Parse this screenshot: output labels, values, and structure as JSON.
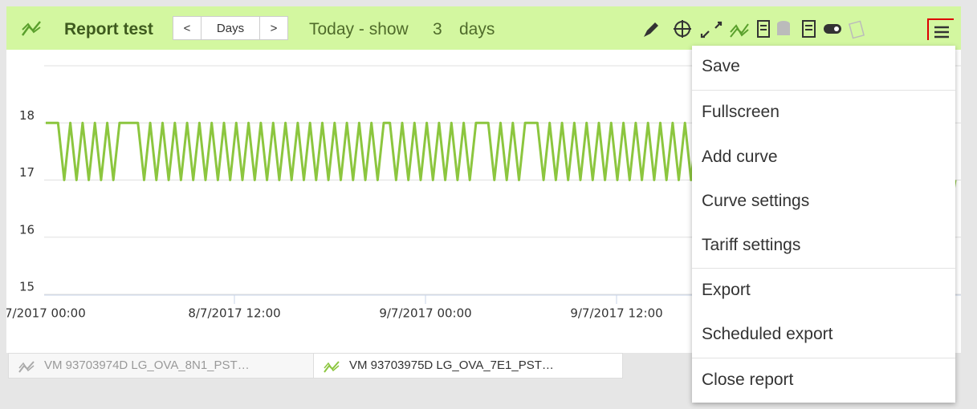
{
  "header": {
    "title": "Report test",
    "prev": "<",
    "period": "Days",
    "next": ">",
    "range_text": "Today - show",
    "range_count": "3",
    "range_unit": "days"
  },
  "chart_data": {
    "type": "line",
    "series": [
      {
        "name": "VM 93703975D LG_OVA_7E1_PST…",
        "color": "#8cc63f",
        "values": [
          18,
          18,
          18,
          17,
          18,
          17,
          18,
          17,
          18,
          17,
          18,
          17,
          18,
          18,
          18,
          18,
          17,
          18,
          17,
          18,
          17,
          18,
          17,
          18,
          17,
          18,
          17,
          18,
          17,
          18,
          17,
          18,
          17,
          18,
          17,
          18,
          17,
          18,
          17,
          18,
          17,
          18,
          17,
          18,
          17,
          18,
          17,
          18,
          17,
          18,
          17,
          18,
          17,
          18,
          17,
          18,
          18,
          17,
          18,
          17,
          18,
          17,
          18,
          17,
          18,
          17,
          18,
          17,
          18,
          17,
          18,
          18,
          18,
          17,
          18,
          17,
          18,
          17,
          18,
          18,
          18,
          17,
          18,
          17,
          18,
          17,
          18,
          17,
          18,
          17,
          18,
          17,
          18,
          17,
          18,
          17,
          18,
          17,
          18,
          17,
          18,
          17,
          18,
          17,
          18,
          17,
          18,
          17,
          18,
          17,
          18,
          17,
          18,
          17,
          18,
          17,
          18,
          17,
          18,
          17,
          18,
          17,
          18,
          17,
          18,
          17,
          18,
          17,
          18,
          17,
          18,
          17,
          18,
          17,
          18,
          17,
          18,
          17,
          18,
          17,
          18,
          17,
          18,
          17,
          18,
          17,
          18,
          16.3,
          17
        ]
      }
    ],
    "inactive_series": [
      "VM 93703974D LG_OVA_8N1_PST…"
    ],
    "xtick_labels": [
      "7/2017 00:00",
      "8/7/2017 12:00",
      "9/7/2017 00:00",
      "9/7/2017 12:00"
    ],
    "ylim": [
      15,
      19
    ],
    "yticks": [
      15,
      16,
      17,
      18
    ],
    "grid": true
  },
  "menu": [
    [
      "Save"
    ],
    [
      "Fullscreen",
      "Add curve",
      "Curve settings",
      "Tariff settings"
    ],
    [
      "Export",
      "Scheduled export"
    ],
    [
      "Close report"
    ]
  ]
}
